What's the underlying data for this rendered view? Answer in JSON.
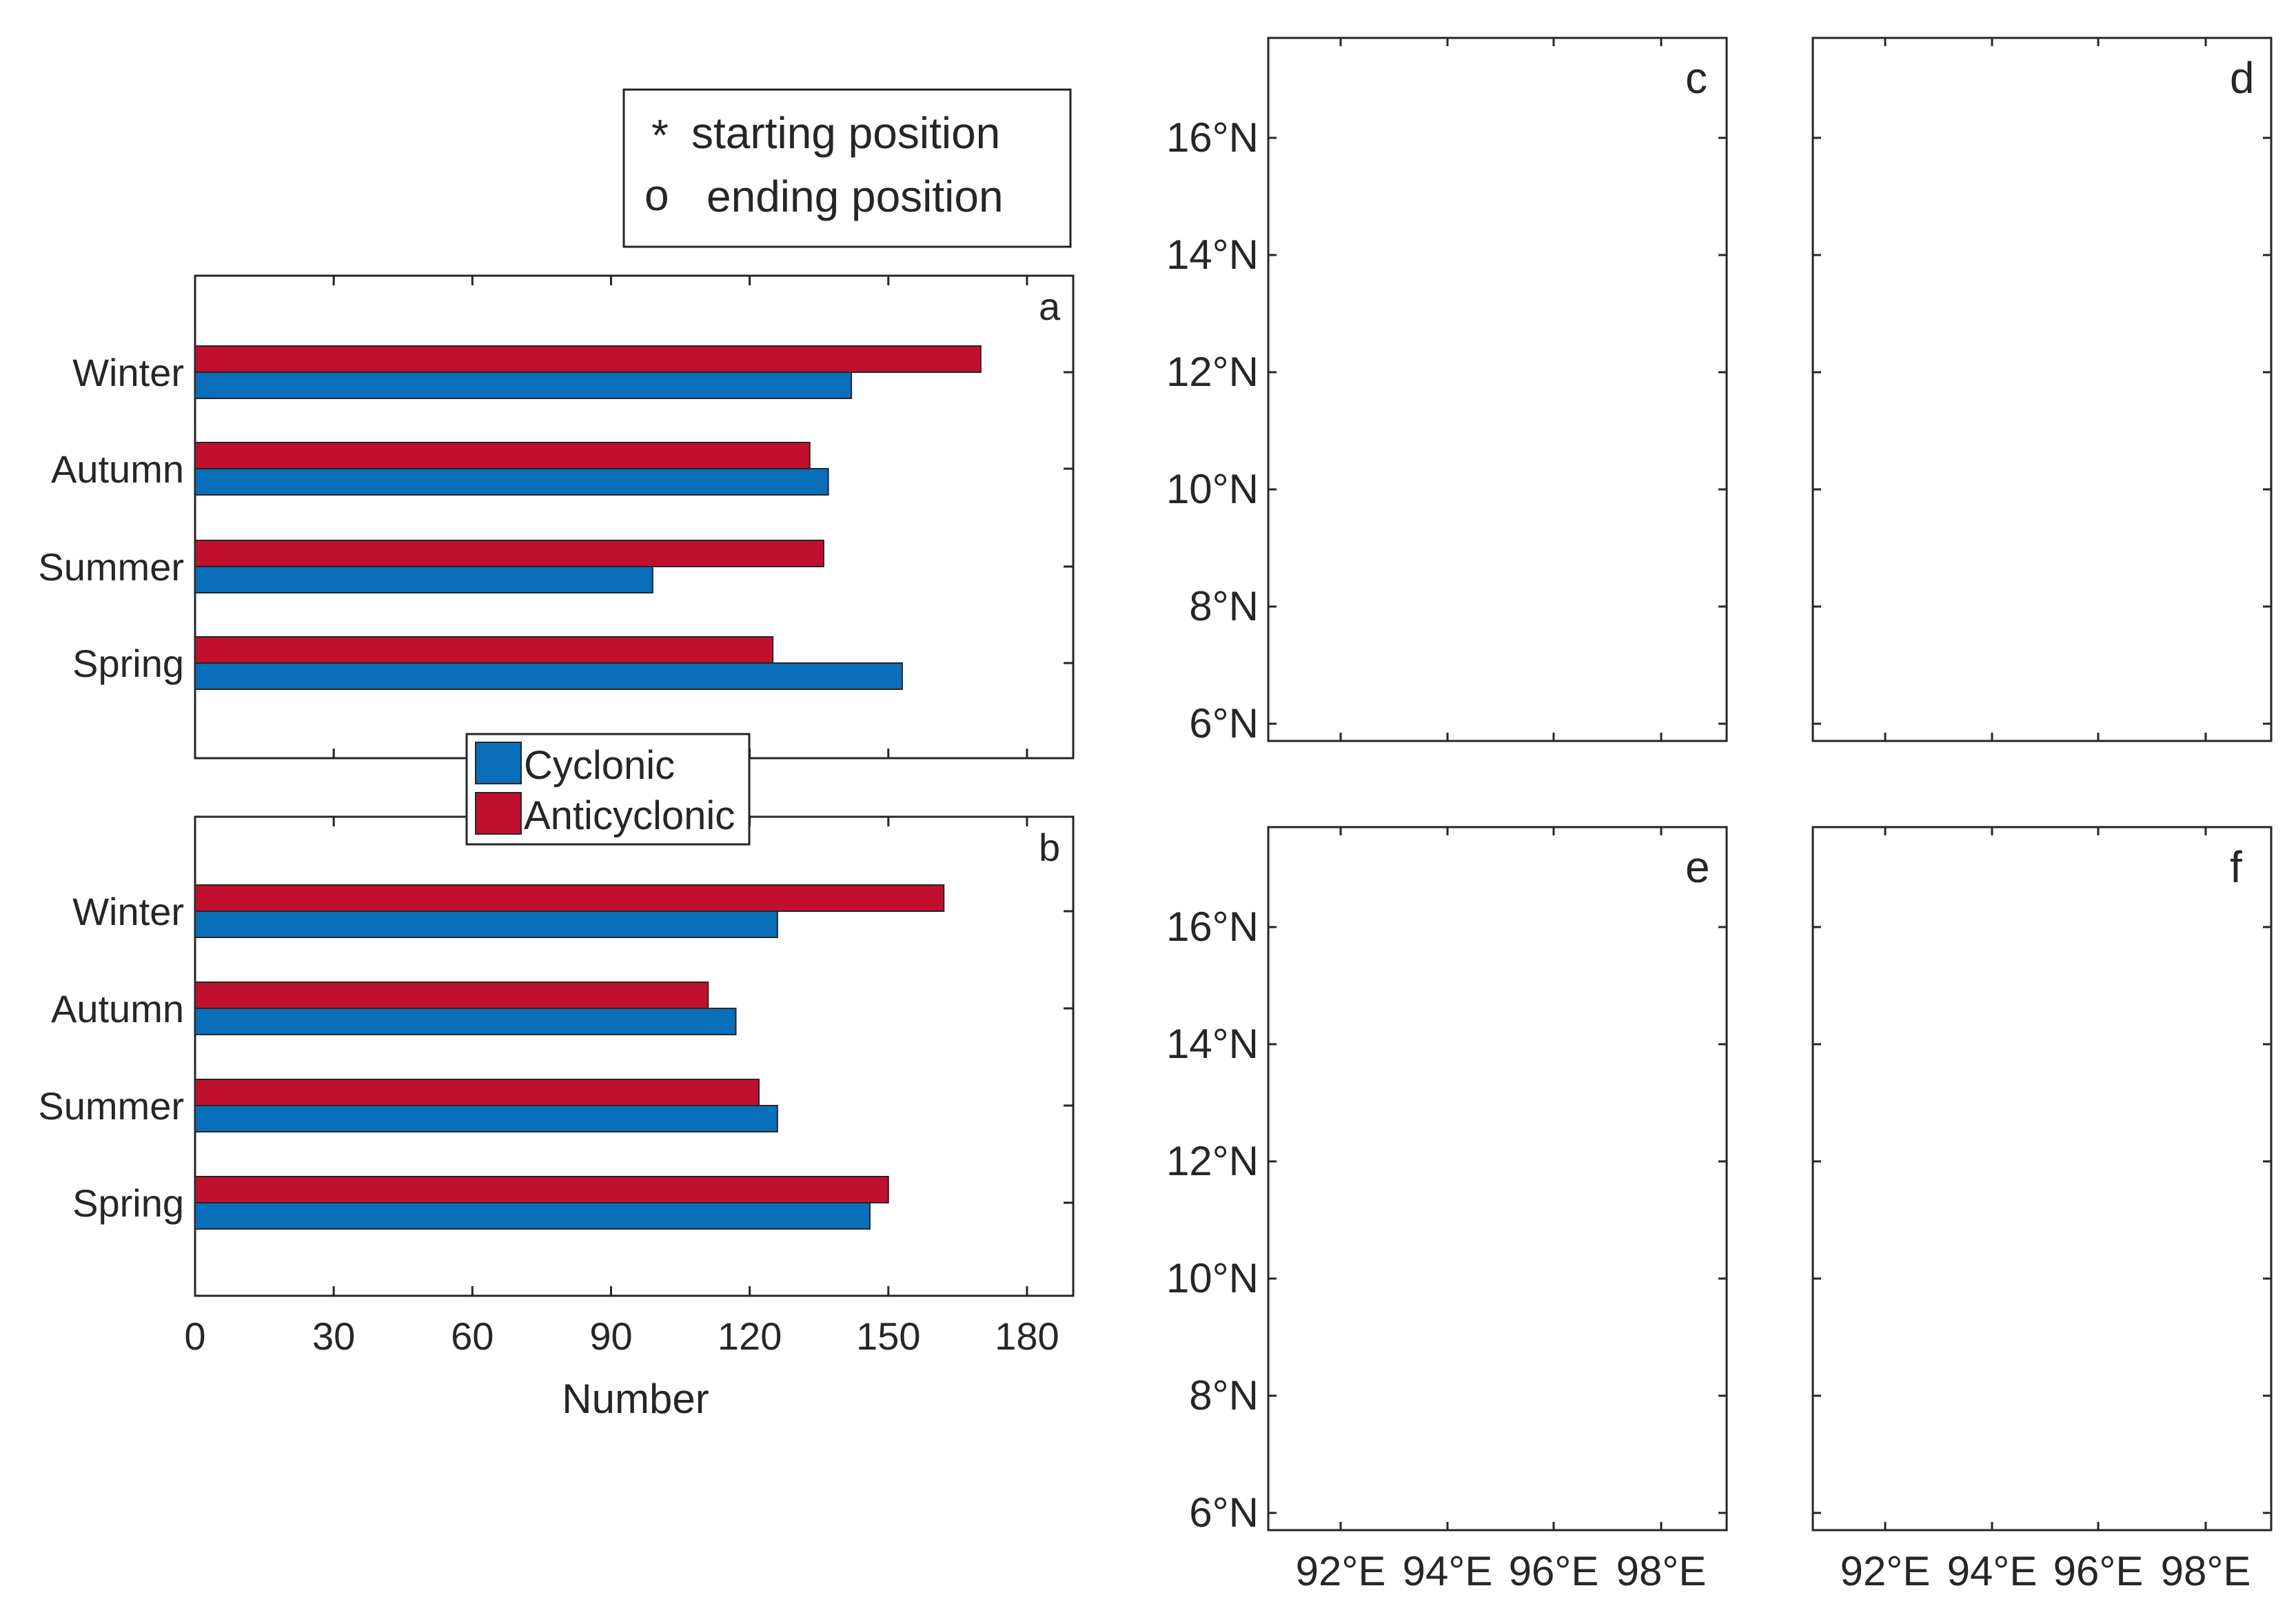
{
  "figure_legend": {
    "start_symbol": "*",
    "start_label": "starting position",
    "end_symbol": "o",
    "end_label": "ending position"
  },
  "series_legend": {
    "cyclonic": "Cyclonic",
    "anticyclonic": "Anticyclonic"
  },
  "colors": {
    "cyclonic_bar": "#0a6fba",
    "anticyclonic_bar": "#c1102e",
    "cyclonic_track": "#1b9bcf",
    "anticyclonic_track": "#e0405a",
    "cyclonic_marker": "#2233ff",
    "anticyclonic_marker": "#ff2a2a",
    "land": "#b2b2b2"
  },
  "chart_data": [
    {
      "panel": "a",
      "type": "bar",
      "orientation": "horizontal",
      "categories": [
        "Winter",
        "Autumn",
        "Summer",
        "Spring"
      ],
      "series": [
        {
          "name": "Anticyclonic",
          "values": [
            170,
            133,
            136,
            125
          ]
        },
        {
          "name": "Cyclonic",
          "values": [
            142,
            137,
            99,
            153
          ]
        }
      ],
      "xlim": [
        0,
        190
      ],
      "xticks": [
        0,
        30,
        60,
        90,
        120,
        150,
        180
      ]
    },
    {
      "panel": "b",
      "type": "bar",
      "orientation": "horizontal",
      "categories": [
        "Winter",
        "Autumn",
        "Summer",
        "Spring"
      ],
      "series": [
        {
          "name": "Anticyclonic",
          "values": [
            162,
            111,
            122,
            150
          ]
        },
        {
          "name": "Cyclonic",
          "values": [
            126,
            117,
            126,
            146
          ]
        }
      ],
      "xlim": [
        0,
        190
      ],
      "xticks": [
        0,
        30,
        60,
        90,
        120,
        150,
        180
      ],
      "xlabel": "Number",
      "xtick_labels": [
        "0",
        "30",
        "60",
        "90",
        "120",
        "150",
        "180"
      ]
    }
  ],
  "maps": {
    "lat_ticks": [
      "16°N",
      "14°N",
      "12°N",
      "10°N",
      "8°N",
      "6°N"
    ],
    "lon_ticks": [
      "92°E",
      "94°E",
      "96°E",
      "98°E"
    ],
    "panels": [
      "c",
      "d",
      "e",
      "f"
    ]
  }
}
